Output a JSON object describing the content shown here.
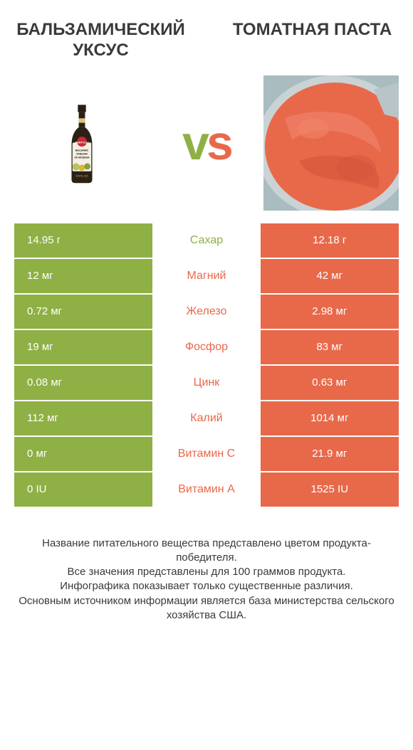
{
  "products": {
    "left": {
      "title": "БАЛЬЗАМИЧЕСКИЙ УКСУС",
      "color": "#8fb045"
    },
    "right": {
      "title": "ТОМАТНАЯ ПАСТА",
      "color": "#e8694a"
    }
  },
  "vs_label": "vs",
  "rows": [
    {
      "label": "Сахар",
      "left": "14.95 г",
      "right": "12.18 г",
      "winner": "left"
    },
    {
      "label": "Магний",
      "left": "12 мг",
      "right": "42 мг",
      "winner": "right"
    },
    {
      "label": "Железо",
      "left": "0.72 мг",
      "right": "2.98 мг",
      "winner": "right"
    },
    {
      "label": "Фосфор",
      "left": "19 мг",
      "right": "83 мг",
      "winner": "right"
    },
    {
      "label": "Цинк",
      "left": "0.08 мг",
      "right": "0.63 мг",
      "winner": "right"
    },
    {
      "label": "Калий",
      "left": "112 мг",
      "right": "1014 мг",
      "winner": "right"
    },
    {
      "label": "Витамин C",
      "left": "0 мг",
      "right": "21.9 мг",
      "winner": "right"
    },
    {
      "label": "Витамин A",
      "left": "0 IU",
      "right": "1525 IU",
      "winner": "right"
    }
  ],
  "row_colors": {
    "left_bg": "#8fb045",
    "right_bg": "#e8694a",
    "left_win_label": "#8fb045",
    "right_win_label": "#e8694a"
  },
  "footer_lines": [
    "Название питательного вещества представлено цветом продукта-победителя.",
    "Все значения представлены для 100 граммов продукта.",
    "Инфографика показывает только существенные различия.",
    "Основным источником информации является база министерства сельского хозяйства США."
  ]
}
